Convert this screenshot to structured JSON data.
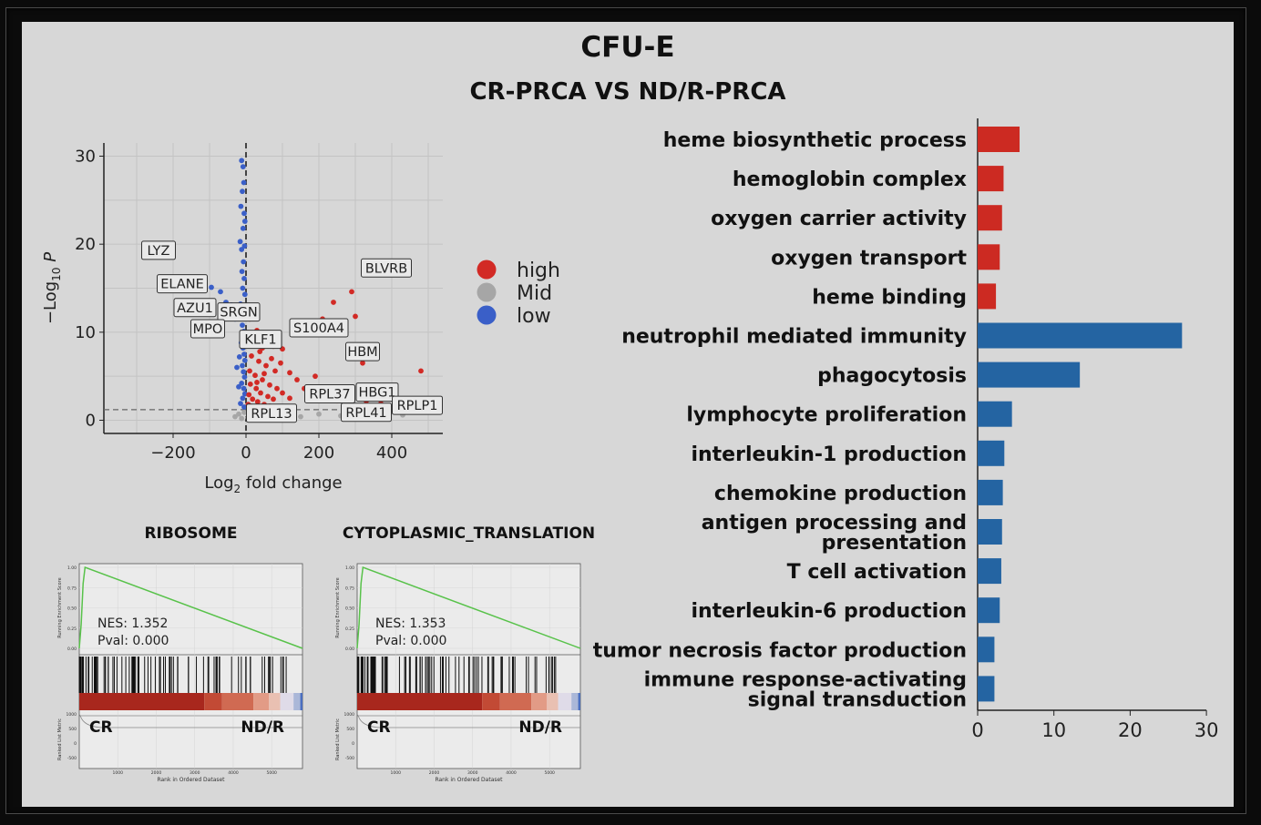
{
  "title": "CFU-E",
  "subtitle": "CR-PRCA VS ND/R-PRCA",
  "chart_data": [
    {
      "type": "scatter",
      "xlabel": "Log2 fold change",
      "ylabel": "−Log10 P",
      "xlim": [
        -390,
        540
      ],
      "ylim": [
        -1.5,
        31.5
      ],
      "xticks": [
        -200,
        0,
        200,
        400
      ],
      "yticks": [
        0,
        10,
        20,
        30
      ],
      "grid": true,
      "legend": {
        "position": "right",
        "entries": [
          {
            "label": "high",
            "color": "#d22a25"
          },
          {
            "label": "Mid",
            "color": "#a6a6a6"
          },
          {
            "label": "low",
            "color": "#3a5fc8"
          }
        ]
      },
      "thresholds": {
        "x": 0,
        "y": 1.2
      },
      "labels": [
        {
          "text": "LYZ",
          "x": -240,
          "y": 19.3
        },
        {
          "text": "ELANE",
          "x": -175,
          "y": 15.5
        },
        {
          "text": "AZU1",
          "x": -140,
          "y": 12.8
        },
        {
          "text": "SRGN",
          "x": -20,
          "y": 12.3
        },
        {
          "text": "MPO",
          "x": -105,
          "y": 10.4
        },
        {
          "text": "KLF1",
          "x": 40,
          "y": 9.2
        },
        {
          "text": "S100A4",
          "x": 200,
          "y": 10.5
        },
        {
          "text": "HBM",
          "x": 320,
          "y": 7.8
        },
        {
          "text": "BLVRB",
          "x": 385,
          "y": 17.3
        },
        {
          "text": "RPL37",
          "x": 230,
          "y": 3.0
        },
        {
          "text": "HBG1",
          "x": 360,
          "y": 3.2
        },
        {
          "text": "RPL13",
          "x": 70,
          "y": 0.8
        },
        {
          "text": "RPL41",
          "x": 330,
          "y": 0.9
        },
        {
          "text": "RPLP1",
          "x": 470,
          "y": 1.7
        }
      ],
      "series": [
        {
          "name": "low",
          "color": "#3a5fc8",
          "points": [
            [
              -240,
              19.3
            ],
            [
              -210,
              15.3
            ],
            [
              -185,
              15.0
            ],
            [
              -160,
              16.0
            ],
            [
              -140,
              15.2
            ],
            [
              -120,
              14.8
            ],
            [
              -95,
              15.1
            ],
            [
              -70,
              14.6
            ],
            [
              -55,
              13.4
            ],
            [
              -40,
              13.1
            ],
            [
              -30,
              11.5
            ],
            [
              -90,
              10.4
            ],
            [
              -12,
              29.5
            ],
            [
              -8,
              28.8
            ],
            [
              -6,
              27.0
            ],
            [
              -10,
              26.0
            ],
            [
              -14,
              24.3
            ],
            [
              -5,
              23.5
            ],
            [
              -3,
              22.6
            ],
            [
              -8,
              21.8
            ],
            [
              -16,
              20.3
            ],
            [
              -12,
              19.4
            ],
            [
              -4,
              19.8
            ],
            [
              -7,
              18.0
            ],
            [
              -11,
              16.9
            ],
            [
              -5,
              16.1
            ],
            [
              -9,
              15.0
            ],
            [
              -3,
              14.3
            ],
            [
              -15,
              13.2
            ],
            [
              -7,
              12.5
            ],
            [
              -4,
              11.8
            ],
            [
              -10,
              10.8
            ],
            [
              -6,
              10.1
            ],
            [
              -2,
              9.5
            ],
            [
              -13,
              8.8
            ],
            [
              -8,
              8.2
            ],
            [
              -5,
              7.5
            ],
            [
              -3,
              6.8
            ],
            [
              -10,
              6.2
            ],
            [
              -7,
              5.5
            ],
            [
              -4,
              4.9
            ],
            [
              -12,
              4.2
            ],
            [
              -6,
              3.6
            ],
            [
              -3,
              3.0
            ],
            [
              -9,
              2.5
            ],
            [
              -15,
              1.9
            ],
            [
              -5,
              1.5
            ],
            [
              -20,
              3.8
            ],
            [
              -25,
              6.0
            ],
            [
              -18,
              7.2
            ]
          ]
        },
        {
          "name": "Mid",
          "color": "#a6a6a6",
          "points": [
            [
              -30,
              0.4
            ],
            [
              -20,
              0.7
            ],
            [
              -12,
              0.2
            ],
            [
              -5,
              0.9
            ],
            [
              5,
              0.3
            ],
            [
              15,
              0.6
            ],
            [
              25,
              0.8
            ],
            [
              40,
              0.2
            ],
            [
              60,
              0.5
            ],
            [
              85,
              0.3
            ],
            [
              110,
              0.9
            ],
            [
              150,
              0.4
            ],
            [
              200,
              0.7
            ],
            [
              260,
              0.5
            ],
            [
              320,
              0.8
            ],
            [
              380,
              0.3
            ],
            [
              430,
              0.6
            ]
          ]
        },
        {
          "name": "high",
          "color": "#d22a25",
          "points": [
            [
              385,
              17.3
            ],
            [
              290,
              14.6
            ],
            [
              240,
              13.4
            ],
            [
              300,
              11.8
            ],
            [
              210,
              11.5
            ],
            [
              150,
              10.6
            ],
            [
              320,
              6.5
            ],
            [
              480,
              5.6
            ],
            [
              190,
              5.0
            ],
            [
              400,
              2.5
            ],
            [
              440,
              2.4
            ],
            [
              480,
              1.8
            ],
            [
              240,
              3.0
            ],
            [
              330,
              2.2
            ],
            [
              370,
              1.9
            ],
            [
              10,
              11.5
            ],
            [
              30,
              10.2
            ],
            [
              60,
              9.4
            ],
            [
              75,
              8.4
            ],
            [
              100,
              8.1
            ],
            [
              120,
              5.4
            ],
            [
              140,
              4.6
            ],
            [
              160,
              3.6
            ],
            [
              180,
              2.9
            ],
            [
              210,
              2.7
            ],
            [
              250,
              2.2
            ],
            [
              280,
              3.0
            ],
            [
              100,
              3.1
            ],
            [
              120,
              2.5
            ],
            [
              20,
              9.0
            ],
            [
              45,
              8.2
            ],
            [
              70,
              7.0
            ],
            [
              95,
              6.5
            ],
            [
              15,
              7.3
            ],
            [
              35,
              6.7
            ],
            [
              55,
              6.2
            ],
            [
              80,
              5.6
            ],
            [
              10,
              5.6
            ],
            [
              25,
              5.1
            ],
            [
              45,
              4.6
            ],
            [
              65,
              4.0
            ],
            [
              85,
              3.6
            ],
            [
              12,
              4.1
            ],
            [
              28,
              3.6
            ],
            [
              40,
              3.1
            ],
            [
              60,
              2.7
            ],
            [
              75,
              2.4
            ],
            [
              8,
              2.9
            ],
            [
              18,
              2.4
            ],
            [
              32,
              2.1
            ],
            [
              50,
              1.8
            ],
            [
              65,
              1.6
            ],
            [
              22,
              1.4
            ],
            [
              40,
              1.5
            ],
            [
              55,
              1.3
            ],
            [
              6,
              1.8
            ],
            [
              14,
              1.6
            ],
            [
              30,
              4.3
            ],
            [
              50,
              5.3
            ],
            [
              38,
              7.8
            ]
          ]
        }
      ]
    },
    {
      "type": "line",
      "title": "RIBOSOME",
      "ylabel": "Running Enrichment Score",
      "ylabel2": "Ranked List Metric",
      "xlabel": "Rank in Ordered Dataset",
      "yticks": [
        "1.00",
        "0.75",
        "0.50",
        "0.25",
        "0.00"
      ],
      "yticks2": [
        "1000",
        "500",
        "0",
        "-500"
      ],
      "xticks": [
        "1000",
        "2000",
        "3000",
        "4000",
        "5000"
      ],
      "xlim": [
        0,
        5800
      ],
      "ylim": [
        0,
        1.0
      ],
      "x": [
        0,
        50,
        100,
        150,
        5800
      ],
      "y": [
        0.0,
        0.3,
        0.8,
        1.0,
        0.0
      ],
      "annotation": {
        "nes": "NES: 1.352",
        "pval": "Pval: 0.000"
      },
      "left_label": "CR",
      "right_label": "ND/R"
    },
    {
      "type": "line",
      "title": "CYTOPLASMIC_TRANSLATION",
      "ylabel": "Running Enrichment Score",
      "ylabel2": "Ranked List Metric",
      "xlabel": "Rank in Ordered Dataset",
      "yticks": [
        "1.00",
        "0.75",
        "0.50",
        "0.25",
        "0.00"
      ],
      "yticks2": [
        "1000",
        "500",
        "0",
        "-500"
      ],
      "xticks": [
        "1000",
        "2000",
        "3000",
        "4000",
        "5000"
      ],
      "xlim": [
        0,
        5800
      ],
      "ylim": [
        0,
        1.0
      ],
      "x": [
        0,
        50,
        100,
        150,
        5800
      ],
      "y": [
        0.0,
        0.3,
        0.8,
        1.0,
        0.0
      ],
      "annotation": {
        "nes": "NES: 1.353",
        "pval": "Pval: 0.000"
      },
      "left_label": "CR",
      "right_label": "ND/R"
    },
    {
      "type": "bar",
      "orientation": "horizontal",
      "categories": [
        "heme biosynthetic process",
        "hemoglobin complex",
        "oxygen carrier activity",
        "oxygen transport",
        "heme binding",
        "neutrophil mediated immunity",
        "phagocytosis",
        "lymphocyte proliferation",
        "interleukin-1 production",
        "chemokine production",
        "antigen processing and\npresentation",
        "T cell activation",
        "interleukin-6 production",
        "tumor necrosis factor production",
        "immune response-activating\nsignal transduction"
      ],
      "values": [
        5.5,
        3.4,
        3.2,
        2.9,
        2.4,
        26.8,
        13.4,
        4.5,
        3.5,
        3.3,
        3.2,
        3.1,
        2.9,
        2.2,
        2.2
      ],
      "colors": [
        "#cc2a22",
        "#cc2a22",
        "#cc2a22",
        "#cc2a22",
        "#cc2a22",
        "#2464a2",
        "#2464a2",
        "#2464a2",
        "#2464a2",
        "#2464a2",
        "#2464a2",
        "#2464a2",
        "#2464a2",
        "#2464a2",
        "#2464a2"
      ],
      "xlim": [
        0,
        30
      ],
      "xticks": [
        0,
        10,
        20,
        30
      ]
    }
  ]
}
